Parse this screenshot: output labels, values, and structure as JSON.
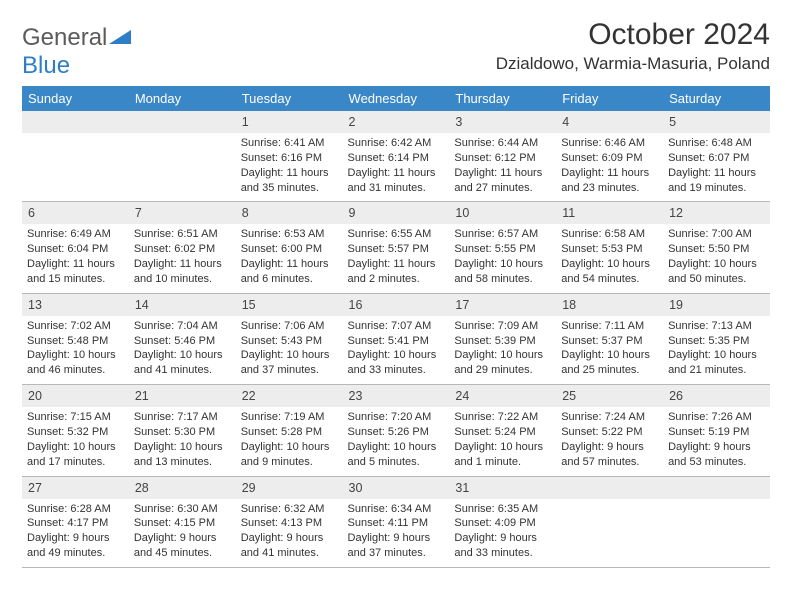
{
  "logo": {
    "part1": "General",
    "part2": "Blue",
    "accent_color": "#2d7dc7",
    "text_color": "#5b5b5b"
  },
  "title": "October 2024",
  "location": "Dzialdowo, Warmia-Masuria, Poland",
  "colors": {
    "header_bg": "#3a87c8",
    "header_fg": "#ffffff",
    "daynum_bg": "#ededed",
    "border": "#b8b8b8",
    "text": "#333333"
  },
  "day_headers": [
    "Sunday",
    "Monday",
    "Tuesday",
    "Wednesday",
    "Thursday",
    "Friday",
    "Saturday"
  ],
  "weeks": [
    [
      null,
      null,
      {
        "n": "1",
        "sunrise": "Sunrise: 6:41 AM",
        "sunset": "Sunset: 6:16 PM",
        "daylight": "Daylight: 11 hours and 35 minutes."
      },
      {
        "n": "2",
        "sunrise": "Sunrise: 6:42 AM",
        "sunset": "Sunset: 6:14 PM",
        "daylight": "Daylight: 11 hours and 31 minutes."
      },
      {
        "n": "3",
        "sunrise": "Sunrise: 6:44 AM",
        "sunset": "Sunset: 6:12 PM",
        "daylight": "Daylight: 11 hours and 27 minutes."
      },
      {
        "n": "4",
        "sunrise": "Sunrise: 6:46 AM",
        "sunset": "Sunset: 6:09 PM",
        "daylight": "Daylight: 11 hours and 23 minutes."
      },
      {
        "n": "5",
        "sunrise": "Sunrise: 6:48 AM",
        "sunset": "Sunset: 6:07 PM",
        "daylight": "Daylight: 11 hours and 19 minutes."
      }
    ],
    [
      {
        "n": "6",
        "sunrise": "Sunrise: 6:49 AM",
        "sunset": "Sunset: 6:04 PM",
        "daylight": "Daylight: 11 hours and 15 minutes."
      },
      {
        "n": "7",
        "sunrise": "Sunrise: 6:51 AM",
        "sunset": "Sunset: 6:02 PM",
        "daylight": "Daylight: 11 hours and 10 minutes."
      },
      {
        "n": "8",
        "sunrise": "Sunrise: 6:53 AM",
        "sunset": "Sunset: 6:00 PM",
        "daylight": "Daylight: 11 hours and 6 minutes."
      },
      {
        "n": "9",
        "sunrise": "Sunrise: 6:55 AM",
        "sunset": "Sunset: 5:57 PM",
        "daylight": "Daylight: 11 hours and 2 minutes."
      },
      {
        "n": "10",
        "sunrise": "Sunrise: 6:57 AM",
        "sunset": "Sunset: 5:55 PM",
        "daylight": "Daylight: 10 hours and 58 minutes."
      },
      {
        "n": "11",
        "sunrise": "Sunrise: 6:58 AM",
        "sunset": "Sunset: 5:53 PM",
        "daylight": "Daylight: 10 hours and 54 minutes."
      },
      {
        "n": "12",
        "sunrise": "Sunrise: 7:00 AM",
        "sunset": "Sunset: 5:50 PM",
        "daylight": "Daylight: 10 hours and 50 minutes."
      }
    ],
    [
      {
        "n": "13",
        "sunrise": "Sunrise: 7:02 AM",
        "sunset": "Sunset: 5:48 PM",
        "daylight": "Daylight: 10 hours and 46 minutes."
      },
      {
        "n": "14",
        "sunrise": "Sunrise: 7:04 AM",
        "sunset": "Sunset: 5:46 PM",
        "daylight": "Daylight: 10 hours and 41 minutes."
      },
      {
        "n": "15",
        "sunrise": "Sunrise: 7:06 AM",
        "sunset": "Sunset: 5:43 PM",
        "daylight": "Daylight: 10 hours and 37 minutes."
      },
      {
        "n": "16",
        "sunrise": "Sunrise: 7:07 AM",
        "sunset": "Sunset: 5:41 PM",
        "daylight": "Daylight: 10 hours and 33 minutes."
      },
      {
        "n": "17",
        "sunrise": "Sunrise: 7:09 AM",
        "sunset": "Sunset: 5:39 PM",
        "daylight": "Daylight: 10 hours and 29 minutes."
      },
      {
        "n": "18",
        "sunrise": "Sunrise: 7:11 AM",
        "sunset": "Sunset: 5:37 PM",
        "daylight": "Daylight: 10 hours and 25 minutes."
      },
      {
        "n": "19",
        "sunrise": "Sunrise: 7:13 AM",
        "sunset": "Sunset: 5:35 PM",
        "daylight": "Daylight: 10 hours and 21 minutes."
      }
    ],
    [
      {
        "n": "20",
        "sunrise": "Sunrise: 7:15 AM",
        "sunset": "Sunset: 5:32 PM",
        "daylight": "Daylight: 10 hours and 17 minutes."
      },
      {
        "n": "21",
        "sunrise": "Sunrise: 7:17 AM",
        "sunset": "Sunset: 5:30 PM",
        "daylight": "Daylight: 10 hours and 13 minutes."
      },
      {
        "n": "22",
        "sunrise": "Sunrise: 7:19 AM",
        "sunset": "Sunset: 5:28 PM",
        "daylight": "Daylight: 10 hours and 9 minutes."
      },
      {
        "n": "23",
        "sunrise": "Sunrise: 7:20 AM",
        "sunset": "Sunset: 5:26 PM",
        "daylight": "Daylight: 10 hours and 5 minutes."
      },
      {
        "n": "24",
        "sunrise": "Sunrise: 7:22 AM",
        "sunset": "Sunset: 5:24 PM",
        "daylight": "Daylight: 10 hours and 1 minute."
      },
      {
        "n": "25",
        "sunrise": "Sunrise: 7:24 AM",
        "sunset": "Sunset: 5:22 PM",
        "daylight": "Daylight: 9 hours and 57 minutes."
      },
      {
        "n": "26",
        "sunrise": "Sunrise: 7:26 AM",
        "sunset": "Sunset: 5:19 PM",
        "daylight": "Daylight: 9 hours and 53 minutes."
      }
    ],
    [
      {
        "n": "27",
        "sunrise": "Sunrise: 6:28 AM",
        "sunset": "Sunset: 4:17 PM",
        "daylight": "Daylight: 9 hours and 49 minutes."
      },
      {
        "n": "28",
        "sunrise": "Sunrise: 6:30 AM",
        "sunset": "Sunset: 4:15 PM",
        "daylight": "Daylight: 9 hours and 45 minutes."
      },
      {
        "n": "29",
        "sunrise": "Sunrise: 6:32 AM",
        "sunset": "Sunset: 4:13 PM",
        "daylight": "Daylight: 9 hours and 41 minutes."
      },
      {
        "n": "30",
        "sunrise": "Sunrise: 6:34 AM",
        "sunset": "Sunset: 4:11 PM",
        "daylight": "Daylight: 9 hours and 37 minutes."
      },
      {
        "n": "31",
        "sunrise": "Sunrise: 6:35 AM",
        "sunset": "Sunset: 4:09 PM",
        "daylight": "Daylight: 9 hours and 33 minutes."
      },
      null,
      null
    ]
  ]
}
